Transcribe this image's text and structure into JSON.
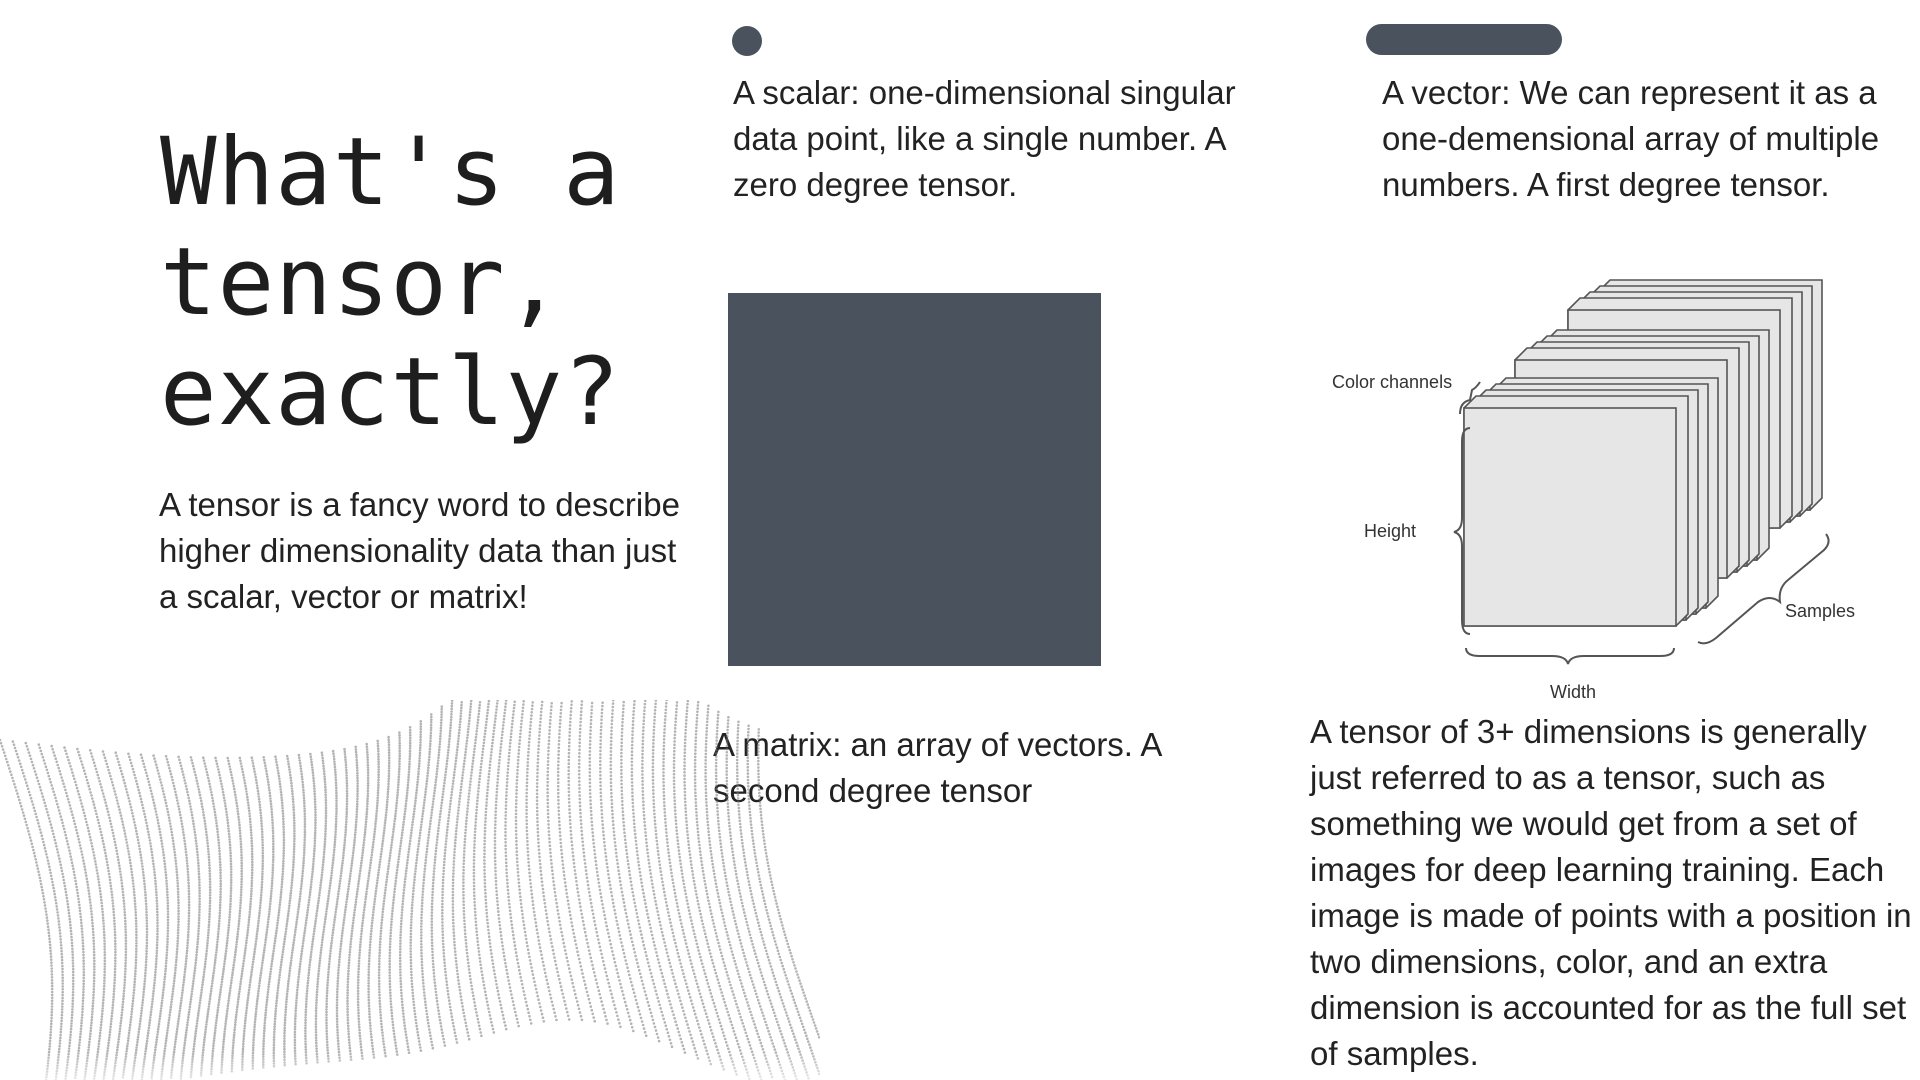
{
  "title": "What's a\ntensor,\nexactly?",
  "intro": "A tensor is a fancy word to describe higher dimensionality data than just a scalar, vector or matrix!",
  "scalar": {
    "text": "A scalar: one-dimensional singular data point, like a single number. A zero degree tensor."
  },
  "vector": {
    "text": "A vector: We can represent it as a one-demensional array of multiple numbers.  A first degree tensor."
  },
  "matrix": {
    "text": "A matrix: an array of vectors. A second degree tensor"
  },
  "tensor": {
    "text": "A tensor of 3+ dimensions is generally just referred to as a tensor, such as something we would get from a set of images for deep learning training.  Each image is made of points with a position in two dimensions, color, and an extra dimension is accounted for as the full set of samples."
  },
  "diagram": {
    "color_channels": "Color channels",
    "height": "Height",
    "width": "Width",
    "samples": "Samples"
  },
  "colors": {
    "shape_fill": "#4a535d",
    "layer_fill": "#e6e6e6",
    "layer_stroke": "#555555"
  }
}
